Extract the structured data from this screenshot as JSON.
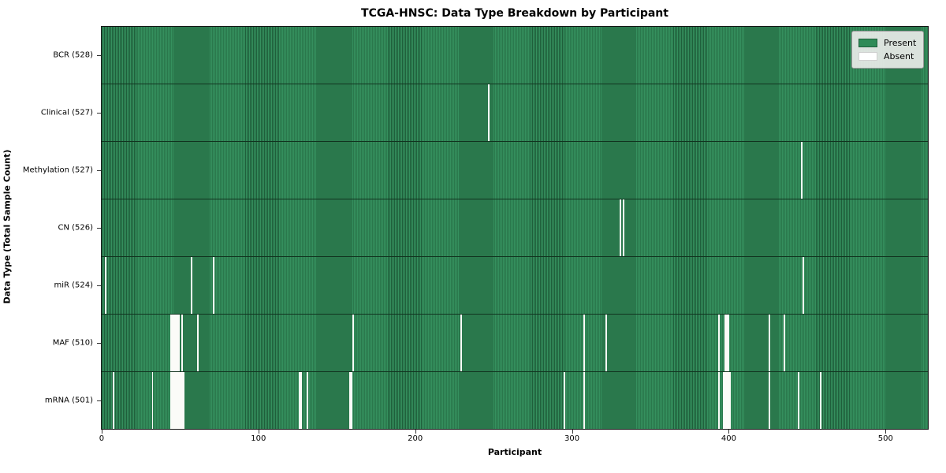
{
  "title": "TCGA-HNSC: Data Type Breakdown by Participant",
  "xlabel": "Participant",
  "ylabel": "Data Type (Total Sample Count)",
  "legend": {
    "present_label": "Present",
    "absent_label": "Absent"
  },
  "colors": {
    "present": "#2e8b57",
    "present_stripe_light": "#35905e",
    "present_stripe_dark": "#1f5f3b",
    "absent": "#fbfbf8",
    "row_divider": "#11331f",
    "plot_border": "#151515",
    "legend_bg": "#e9ebe9"
  },
  "chart_data": {
    "type": "heatmap",
    "title": "TCGA-HNSC: Data Type Breakdown by Participant",
    "xlabel": "Participant",
    "ylabel": "Data Type (Total Sample Count)",
    "legend": [
      "Present",
      "Absent"
    ],
    "legend_position": "upper right",
    "total_participants": 528,
    "x_ticks": [
      0,
      100,
      200,
      300,
      400,
      500
    ],
    "x_range": [
      0,
      528
    ],
    "grid": false,
    "rows": [
      {
        "name": "bcr",
        "label": "BCR (528)",
        "total": 528,
        "absent_participants": []
      },
      {
        "name": "clinical",
        "label": "Clinical (527)",
        "total": 527,
        "absent_participants": [
          247
        ]
      },
      {
        "name": "methylation",
        "label": "Methylation (527)",
        "total": 527,
        "absent_participants": [
          447
        ]
      },
      {
        "name": "cn",
        "label": "CN (526)",
        "total": 526,
        "absent_participants": [
          331,
          333
        ]
      },
      {
        "name": "mir",
        "label": "miR (524)",
        "total": 524,
        "absent_participants": [
          2,
          57,
          71,
          448
        ]
      },
      {
        "name": "maf",
        "label": "MAF (510)",
        "total": 510,
        "absent_participants": [
          44,
          45,
          46,
          47,
          48,
          49,
          51,
          61,
          160,
          229,
          308,
          322,
          394,
          398,
          399,
          400,
          426,
          436
        ]
      },
      {
        "name": "mrna",
        "label": "mRNA (501)",
        "total": 501,
        "absent_participants": [
          7,
          32,
          44,
          45,
          46,
          47,
          48,
          49,
          50,
          51,
          52,
          126,
          127,
          131,
          158,
          159,
          295,
          308,
          394,
          397,
          398,
          399,
          400,
          401,
          426,
          445,
          459
        ]
      }
    ]
  }
}
